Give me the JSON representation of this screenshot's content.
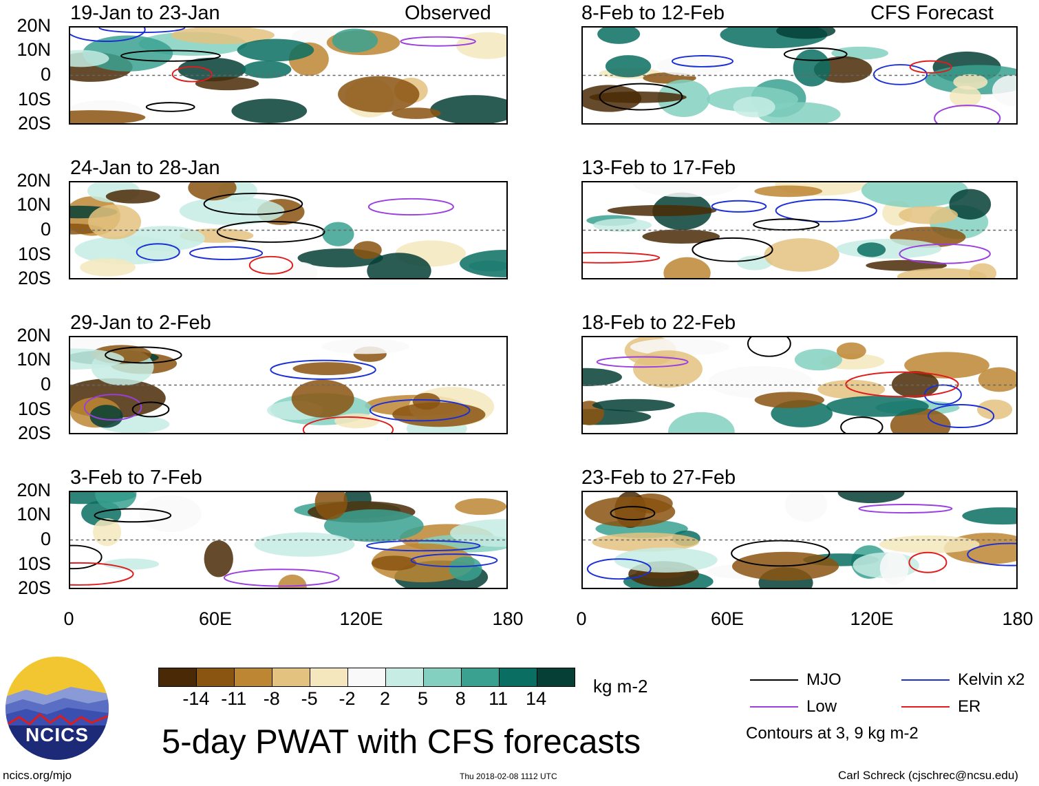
{
  "panels": [
    {
      "id": "p0",
      "title": "19-Jan to 23-Jan",
      "tag": "Observed"
    },
    {
      "id": "p1",
      "title": "8-Feb to 12-Feb",
      "tag": "CFS Forecast"
    },
    {
      "id": "p2",
      "title": "24-Jan to 28-Jan",
      "tag": ""
    },
    {
      "id": "p3",
      "title": "13-Feb to 17-Feb",
      "tag": ""
    },
    {
      "id": "p4",
      "title": "29-Jan to 2-Feb",
      "tag": ""
    },
    {
      "id": "p5",
      "title": "18-Feb to 22-Feb",
      "tag": ""
    },
    {
      "id": "p6",
      "title": "3-Feb to 7-Feb",
      "tag": ""
    },
    {
      "id": "p7",
      "title": "23-Feb to 27-Feb",
      "tag": ""
    }
  ],
  "axes": {
    "y_ticks": [
      "20N",
      "10N",
      "0",
      "10S",
      "20S"
    ],
    "x_ticks": [
      "0",
      "60E",
      "120E",
      "180"
    ]
  },
  "colorbar": {
    "colors": [
      "#4a2a06",
      "#8a5411",
      "#bd8632",
      "#e3c27f",
      "#f5e7bd",
      "#f9f9f9",
      "#c6ece4",
      "#83d0c0",
      "#3aa191",
      "#0a6e62",
      "#053f36"
    ],
    "ticks": [
      "-14",
      "-11",
      "-8",
      "-5",
      "-2",
      "2",
      "5",
      "8",
      "11",
      "14"
    ],
    "unit": "kg m-2"
  },
  "title": "5-day PWAT with CFS forecasts",
  "legend": {
    "items": [
      {
        "label": "MJO",
        "color": "#000000"
      },
      {
        "label": "Kelvin x2",
        "color": "#1a2fd6"
      },
      {
        "label": "Low",
        "color": "#9a3ee0"
      },
      {
        "label": "ER",
        "color": "#e01b1b"
      }
    ],
    "note": "Contours at 3, 9 kg m-2"
  },
  "logo_text": "NCICS",
  "footer": {
    "left": "ncics.org/mjo",
    "center": "Thu 2018-02-08 1112 UTC",
    "right": "Carl Schreck (cjschrec@ncsu.edu)"
  },
  "chart_data": {
    "type": "heatmap",
    "variable": "5-day precipitable water (PWAT) anomaly",
    "unit": "kg m-2",
    "lat_range": [
      -20,
      20
    ],
    "lon_range": [
      0,
      180
    ],
    "levels": [
      -14,
      -11,
      -8,
      -5,
      -2,
      2,
      5,
      8,
      11,
      14
    ],
    "contour_levels": [
      3,
      9
    ],
    "contours": [
      "MJO",
      "Kelvin x2",
      "Low",
      "ER"
    ],
    "periods_observed": [
      "19-Jan to 23-Jan",
      "24-Jan to 28-Jan",
      "29-Jan to 2-Feb",
      "3-Feb to 7-Feb"
    ],
    "periods_forecast": [
      "8-Feb to 12-Feb",
      "13-Feb to 17-Feb",
      "18-Feb to 22-Feb",
      "23-Feb to 27-Feb"
    ]
  }
}
